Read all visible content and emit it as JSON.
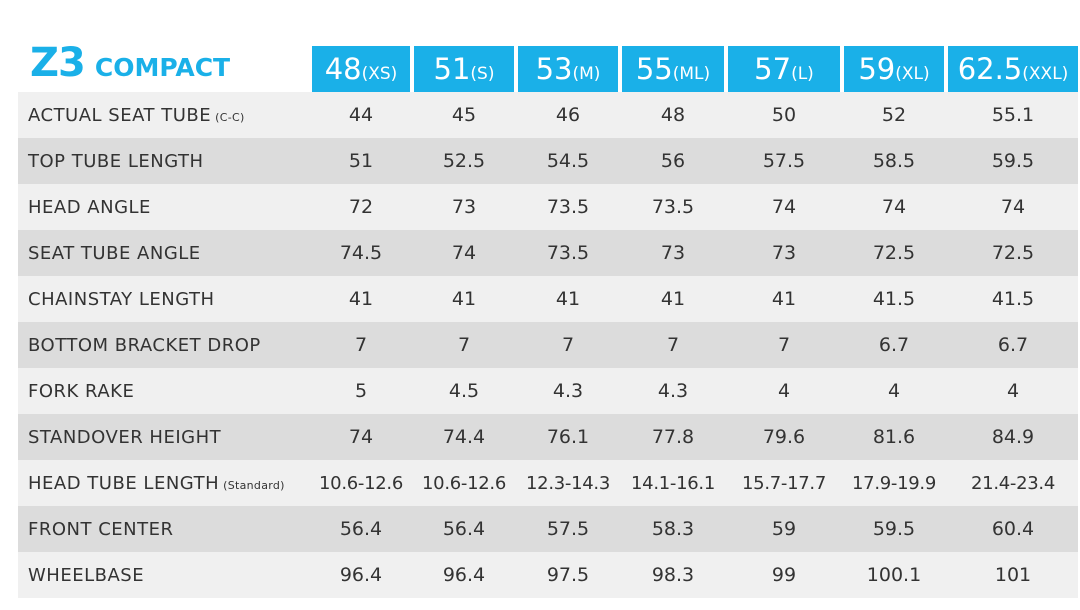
{
  "header": {
    "model": "Z3",
    "subtitle": "COMPACT"
  },
  "colors": {
    "accent": "#1ab0e8",
    "row_light": "#f0f0f0",
    "row_dark": "#dcdcdc"
  },
  "sizes": [
    {
      "num": "48",
      "label": "(XS)"
    },
    {
      "num": "51",
      "label": "(S)"
    },
    {
      "num": "53",
      "label": "(M)"
    },
    {
      "num": "55",
      "label": "(ML)"
    },
    {
      "num": "57",
      "label": "(L)"
    },
    {
      "num": "59",
      "label": "(XL)"
    },
    {
      "num": "62.5",
      "label": "(XXL)"
    }
  ],
  "rows": [
    {
      "label": "ACTUAL SEAT TUBE",
      "note": "(C-C)",
      "values": [
        "44",
        "45",
        "46",
        "48",
        "50",
        "52",
        "55.1"
      ]
    },
    {
      "label": "TOP TUBE LENGTH",
      "note": "",
      "values": [
        "51",
        "52.5",
        "54.5",
        "56",
        "57.5",
        "58.5",
        "59.5"
      ]
    },
    {
      "label": "HEAD ANGLE",
      "note": "",
      "values": [
        "72",
        "73",
        "73.5",
        "73.5",
        "74",
        "74",
        "74"
      ]
    },
    {
      "label": "SEAT TUBE ANGLE",
      "note": "",
      "values": [
        "74.5",
        "74",
        "73.5",
        "73",
        "73",
        "72.5",
        "72.5"
      ]
    },
    {
      "label": "CHAINSTAY LENGTH",
      "note": "",
      "values": [
        "41",
        "41",
        "41",
        "41",
        "41",
        "41.5",
        "41.5"
      ]
    },
    {
      "label": "BOTTOM BRACKET DROP",
      "note": "",
      "values": [
        "7",
        "7",
        "7",
        "7",
        "7",
        "6.7",
        "6.7"
      ]
    },
    {
      "label": "FORK RAKE",
      "note": "",
      "values": [
        "5",
        "4.5",
        "4.3",
        "4.3",
        "4",
        "4",
        "4"
      ]
    },
    {
      "label": "STANDOVER HEIGHT",
      "note": "",
      "values": [
        "74",
        "74.4",
        "76.1",
        "77.8",
        "79.6",
        "81.6",
        "84.9"
      ]
    },
    {
      "label": "HEAD TUBE LENGTH",
      "note": "(Standard)",
      "values": [
        "10.6-12.6",
        "10.6-12.6",
        "12.3-14.3",
        "14.1-16.1",
        "15.7-17.7",
        "17.9-19.9",
        "21.4-23.4"
      ]
    },
    {
      "label": "FRONT CENTER",
      "note": "",
      "values": [
        "56.4",
        "56.4",
        "57.5",
        "58.3",
        "59",
        "59.5",
        "60.4"
      ]
    },
    {
      "label": "WHEELBASE",
      "note": "",
      "values": [
        "96.4",
        "96.4",
        "97.5",
        "98.3",
        "99",
        "100.1",
        "101"
      ]
    }
  ]
}
